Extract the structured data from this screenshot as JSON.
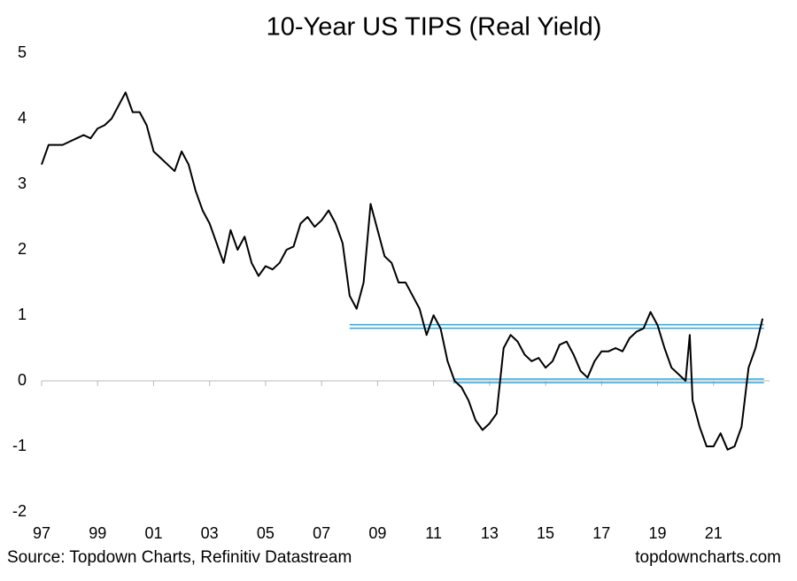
{
  "chart_data": {
    "type": "line",
    "title": "10-Year US TIPS (Real Yield)",
    "source": "Source: Topdown Charts, Refinitiv Datastream",
    "watermark": "topdowncharts.com",
    "x": [
      1997.0,
      1997.25,
      1997.5,
      1997.75,
      1998.0,
      1998.25,
      1998.5,
      1998.75,
      1999.0,
      1999.25,
      1999.5,
      1999.75,
      2000.0,
      2000.25,
      2000.5,
      2000.75,
      2001.0,
      2001.25,
      2001.5,
      2001.75,
      2002.0,
      2002.25,
      2002.5,
      2002.75,
      2003.0,
      2003.25,
      2003.5,
      2003.75,
      2004.0,
      2004.25,
      2004.5,
      2004.75,
      2005.0,
      2005.25,
      2005.5,
      2005.75,
      2006.0,
      2006.25,
      2006.5,
      2006.75,
      2007.0,
      2007.25,
      2007.5,
      2007.75,
      2008.0,
      2008.25,
      2008.5,
      2008.75,
      2009.0,
      2009.25,
      2009.5,
      2009.75,
      2010.0,
      2010.25,
      2010.5,
      2010.75,
      2011.0,
      2011.25,
      2011.5,
      2011.75,
      2012.0,
      2012.25,
      2012.5,
      2012.75,
      2013.0,
      2013.25,
      2013.5,
      2013.75,
      2014.0,
      2014.25,
      2014.5,
      2014.75,
      2015.0,
      2015.25,
      2015.5,
      2015.75,
      2016.0,
      2016.25,
      2016.5,
      2016.75,
      2017.0,
      2017.25,
      2017.5,
      2017.75,
      2018.0,
      2018.25,
      2018.5,
      2018.75,
      2019.0,
      2019.25,
      2019.5,
      2019.75,
      2020.0,
      2020.15,
      2020.25,
      2020.5,
      2020.75,
      2021.0,
      2021.25,
      2021.5,
      2021.75,
      2022.0,
      2022.25,
      2022.5,
      2022.75
    ],
    "series": [
      {
        "name": "10-Year US TIPS",
        "color": "#000000",
        "values": [
          3.3,
          3.6,
          3.6,
          3.6,
          3.65,
          3.7,
          3.75,
          3.7,
          3.85,
          3.9,
          4.0,
          4.2,
          4.4,
          4.1,
          4.1,
          3.9,
          3.5,
          3.4,
          3.3,
          3.2,
          3.5,
          3.3,
          2.9,
          2.6,
          2.4,
          2.1,
          1.8,
          2.3,
          2.0,
          2.2,
          1.8,
          1.6,
          1.75,
          1.7,
          1.8,
          2.0,
          2.05,
          2.4,
          2.5,
          2.35,
          2.45,
          2.6,
          2.4,
          2.1,
          1.3,
          1.1,
          1.5,
          2.7,
          2.3,
          1.9,
          1.8,
          1.5,
          1.5,
          1.3,
          1.1,
          0.7,
          1.0,
          0.8,
          0.3,
          0.0,
          -0.1,
          -0.3,
          -0.6,
          -0.75,
          -0.65,
          -0.5,
          0.5,
          0.7,
          0.6,
          0.4,
          0.3,
          0.35,
          0.2,
          0.3,
          0.55,
          0.6,
          0.4,
          0.15,
          0.05,
          0.3,
          0.45,
          0.45,
          0.5,
          0.45,
          0.65,
          0.75,
          0.8,
          1.05,
          0.85,
          0.5,
          0.2,
          0.1,
          0.0,
          0.7,
          -0.3,
          -0.7,
          -1.0,
          -1.0,
          -0.8,
          -1.05,
          -1.0,
          -0.7,
          0.2,
          0.5,
          0.95
        ]
      }
    ],
    "reference_lines": [
      {
        "y": 0.83,
        "x": [
          2008.0,
          2022.8
        ],
        "color": "#29a8e0"
      },
      {
        "y": 0.0,
        "x": [
          2011.7,
          2022.8
        ],
        "color": "#29a8e0"
      }
    ],
    "xlim": [
      1997,
      2023
    ],
    "xticks": [
      {
        "value": 1997,
        "label": "97"
      },
      {
        "value": 1999,
        "label": "99"
      },
      {
        "value": 2001,
        "label": "01"
      },
      {
        "value": 2003,
        "label": "03"
      },
      {
        "value": 2005,
        "label": "05"
      },
      {
        "value": 2007,
        "label": "07"
      },
      {
        "value": 2009,
        "label": "09"
      },
      {
        "value": 2011,
        "label": "11"
      },
      {
        "value": 2013,
        "label": "13"
      },
      {
        "value": 2015,
        "label": "15"
      },
      {
        "value": 2017,
        "label": "17"
      },
      {
        "value": 2019,
        "label": "19"
      },
      {
        "value": 2021,
        "label": "21"
      }
    ],
    "ylim": [
      -2,
      5
    ],
    "yticks": [
      -2,
      -1,
      0,
      1,
      2,
      3,
      4,
      5
    ],
    "grid": false
  }
}
